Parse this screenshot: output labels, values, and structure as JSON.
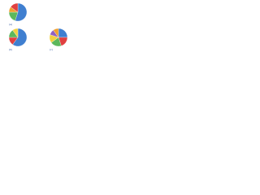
{
  "chart_data": [
    {
      "type": "pie",
      "caption": "(a)",
      "categories": [
        null,
        null,
        null,
        null
      ],
      "values": [
        55,
        20,
        10,
        15
      ],
      "colors": [
        "#3f7fd0",
        "#5cb85c",
        "#f0a030",
        "#e04040"
      ]
    },
    {
      "type": "pie",
      "caption": "(b)",
      "categories": [
        null,
        null,
        null,
        null
      ],
      "values": [
        60,
        15,
        15,
        10
      ],
      "colors": [
        "#3f7fd0",
        "#e04040",
        "#5cb85c",
        "#f2d040"
      ]
    },
    {
      "type": "pie",
      "caption": "(c)",
      "categories": [
        null,
        null,
        null,
        null,
        null,
        null
      ],
      "values": [
        25,
        20,
        20,
        15,
        10,
        10
      ],
      "colors": [
        "#3f7fd0",
        "#e04040",
        "#5cb85c",
        "#f2d040",
        "#9060c0",
        "#f0a030"
      ]
    }
  ]
}
